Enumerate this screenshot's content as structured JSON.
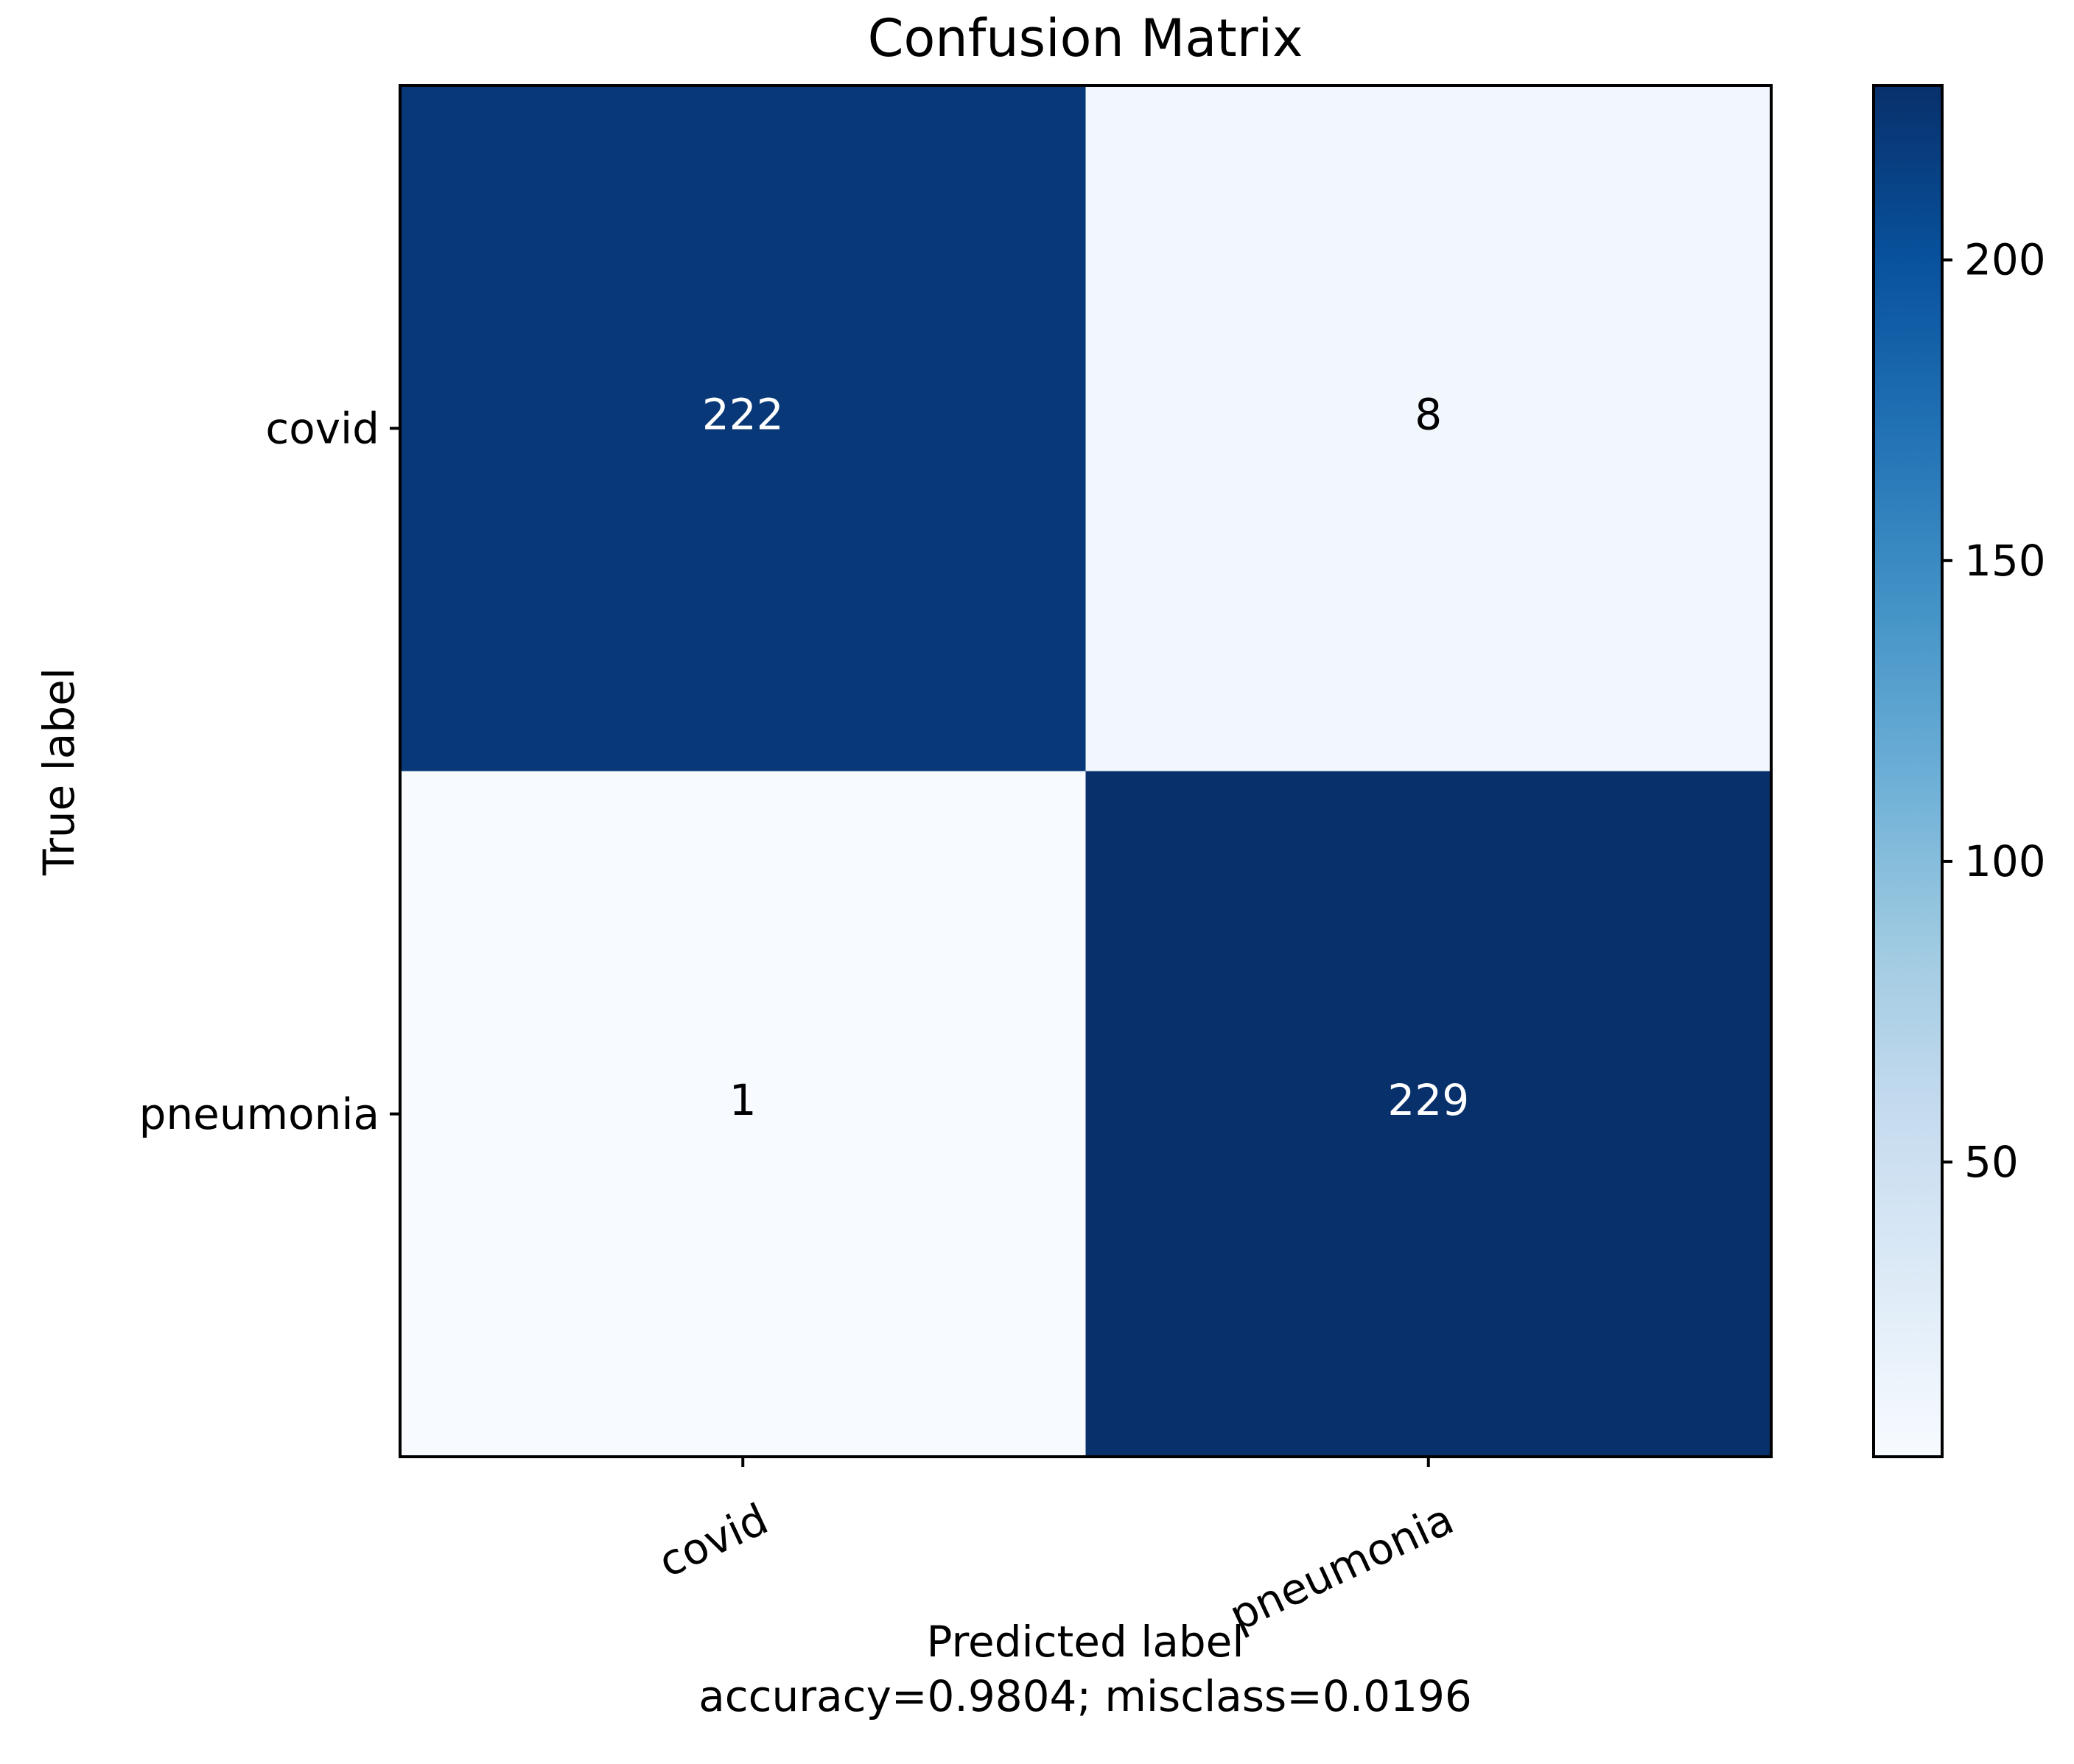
{
  "chart_data": {
    "type": "heatmap",
    "title": "Confusion Matrix",
    "xlabel": "Predicted label",
    "xlabel_line2": "accuracy=0.9804; misclass=0.0196",
    "ylabel": "True label",
    "x_categories": [
      "covid",
      "pneumonia"
    ],
    "y_categories": [
      "covid",
      "pneumonia"
    ],
    "matrix": [
      [
        222,
        8
      ],
      [
        1,
        229
      ]
    ],
    "colormap": "Blues",
    "colorbar": {
      "vmin": 1,
      "vmax": 229,
      "ticks": [
        50,
        100,
        150,
        200
      ],
      "tick_labels": [
        "50",
        "100",
        "150",
        "200"
      ]
    },
    "grid": false,
    "legend": "none"
  }
}
